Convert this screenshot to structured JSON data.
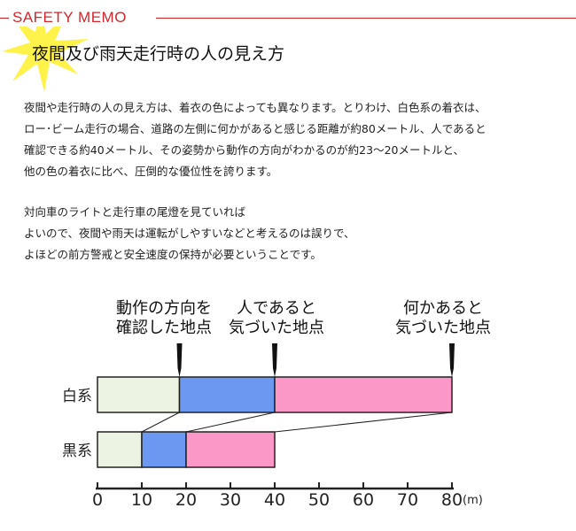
{
  "header": {
    "label": "SAFETY  MEMO",
    "title": "夜間及び雨天走行時の人の見え方"
  },
  "body": {
    "paragraph1": [
      "夜間や走行時の人の見え方は、着衣の色によっても異なります。とりわけ、白色系の着衣は、",
      "ロー･ビーム走行の場合、道路の左側に何かがあると感じる距離が約80メートル、人であると",
      "確認できる約40メートル、その姿勢から動作の方向がわかるのが約23～20メートルと、",
      "他の色の着衣に比べ、圧倒的な優位性を誇ります。"
    ],
    "paragraph2": [
      "対向車のライトと走行車の尾燈を見ていれば",
      "よいので、夜間や雨天は運転がしやすいなどと考えるのは誤りで、",
      "よほどの前方警戒と安全速度の保持が必要ということです。"
    ]
  },
  "chart_data": {
    "type": "bar",
    "orientation": "horizontal-stacked",
    "categories": [
      "白系",
      "黒系"
    ],
    "series": [
      {
        "name": "動作の方向を確認した地点",
        "start": [
          0,
          0
        ],
        "end": [
          18.5,
          10
        ],
        "color": "#ecf3e2"
      },
      {
        "name": "人であると気づいた地点",
        "start": [
          18.5,
          10
        ],
        "end": [
          40,
          20
        ],
        "color": "#6c98f2"
      },
      {
        "name": "何かあると気づいた地点",
        "start": [
          40,
          20
        ],
        "end": [
          80,
          40
        ],
        "color": "#fb98c8"
      }
    ],
    "markers": [
      {
        "label_lines": [
          "動作の方向を",
          "確認した地点"
        ],
        "x": 18.5
      },
      {
        "label_lines": [
          "人であると",
          "気づいた地点"
        ],
        "x": 40
      },
      {
        "label_lines": [
          "何かあると",
          "気づいた地点"
        ],
        "x": 80
      }
    ],
    "xticks": [
      0,
      10,
      20,
      30,
      40,
      50,
      60,
      70,
      80
    ],
    "xunit": "(m)",
    "xlim": [
      0,
      80
    ],
    "connector_lines": "white-end to black-end for each segment"
  }
}
